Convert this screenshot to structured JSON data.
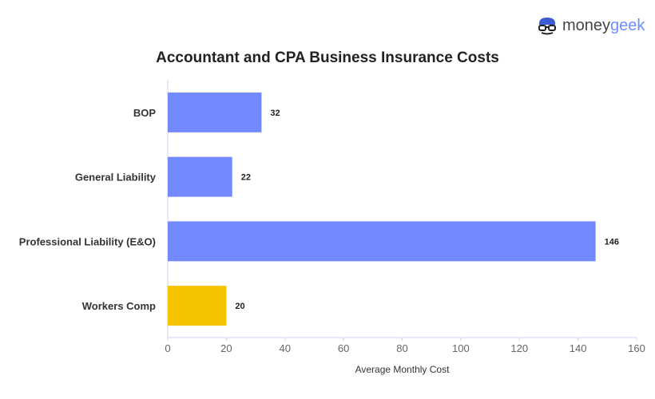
{
  "logo": {
    "part1": "money",
    "part2": "geek"
  },
  "chart_data": {
    "type": "bar",
    "orientation": "horizontal",
    "title": "Accountant and CPA Business Insurance Costs",
    "categories": [
      "BOP",
      "General Liability",
      "Professional Liability (E&O)",
      "Workers Comp"
    ],
    "values": [
      32,
      22,
      146,
      20
    ],
    "colors": [
      "#7289ff",
      "#7289ff",
      "#7289ff",
      "#f5c300"
    ],
    "xlabel": "Average Monthly Cost",
    "ylabel": "",
    "xlim": [
      0,
      160
    ],
    "xticks": [
      0,
      20,
      40,
      60,
      80,
      100,
      120,
      140,
      160
    ],
    "grid": false
  }
}
